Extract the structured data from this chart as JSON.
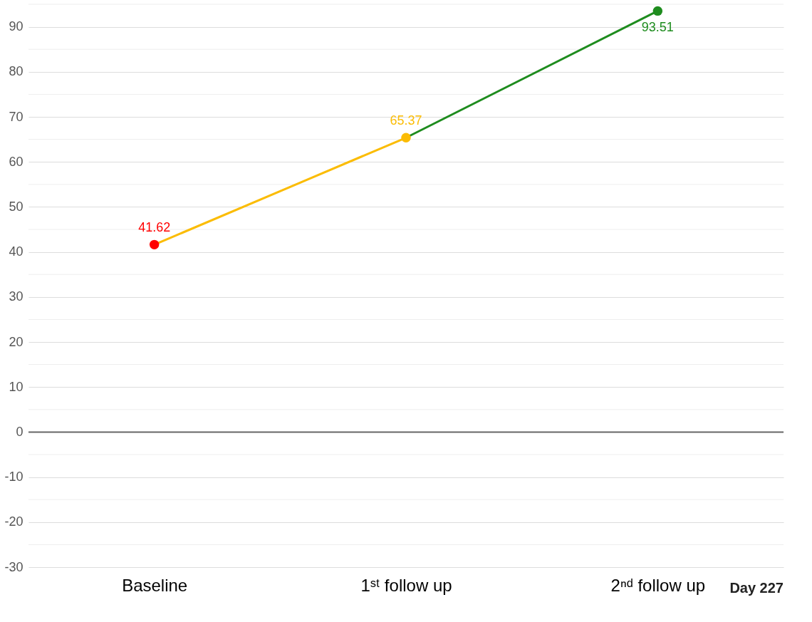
{
  "chart_data": {
    "type": "line",
    "categories": [
      "Baseline",
      "1ˢᵗ follow up",
      "2ⁿᵈ follow up"
    ],
    "series": [
      {
        "values": [
          41.62,
          65.37,
          93.51
        ],
        "colors": [
          "#ff0000",
          "#fbbc04",
          "#1e8c1e"
        ]
      }
    ],
    "ylim": [
      -30,
      95
    ],
    "yticks": [
      -30,
      {
        "value": -25,
        "label": null
      },
      -20,
      {
        "value": -15,
        "label": null
      },
      -10,
      {
        "value": -5,
        "label": null
      },
      0,
      {
        "value": 5,
        "label": null
      },
      10,
      {
        "value": 15,
        "label": null
      },
      20,
      {
        "value": 25,
        "label": null
      },
      30,
      {
        "value": 35,
        "label": null
      },
      40,
      {
        "value": 45,
        "label": null
      },
      50,
      {
        "value": 55,
        "label": null
      },
      60,
      {
        "value": 65,
        "label": null
      },
      70,
      {
        "value": 75,
        "label": null
      },
      80,
      {
        "value": 85,
        "label": null
      },
      90,
      {
        "value": 95,
        "label": null
      }
    ],
    "grid": "y",
    "marker": "circle",
    "line_style": "solid",
    "data_labels": true,
    "ref_lines": [
      {
        "axis": "y",
        "value": 0,
        "color": "#666666"
      }
    ],
    "annotations": [
      "Day 227"
    ]
  }
}
